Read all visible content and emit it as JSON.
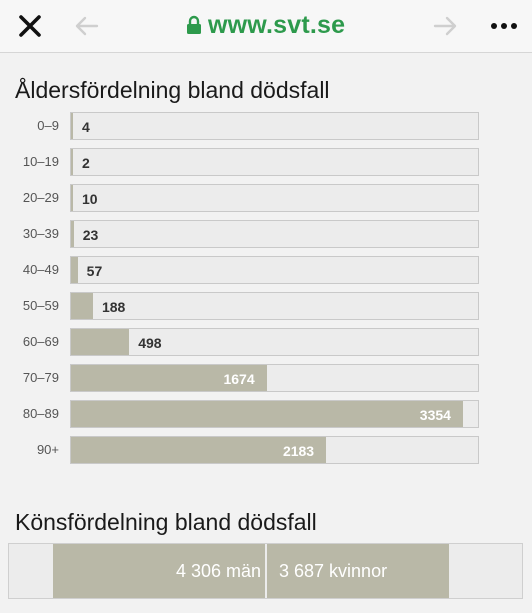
{
  "browser": {
    "url": "www.svt.se",
    "colors": {
      "url": "#2d9a4c",
      "bar_fill": "#b9b8a7"
    },
    "icons": [
      "close-icon",
      "back-arrow-icon",
      "lock-icon",
      "forward-arrow-icon",
      "more-icon"
    ]
  },
  "age_section": {
    "title": "Åldersfördelning bland dödsfall"
  },
  "chart_data": [
    {
      "type": "bar",
      "title": "Åldersfördelning bland dödsfall",
      "orientation": "horizontal",
      "categories": [
        "0–9",
        "10–19",
        "20–29",
        "30–39",
        "40–49",
        "50–59",
        "60–69",
        "70–79",
        "80–89",
        "90+"
      ],
      "values": [
        4,
        2,
        10,
        23,
        57,
        188,
        498,
        1674,
        3354,
        2183
      ],
      "value_labels": [
        "4",
        "2",
        "10",
        "23",
        "57",
        "188",
        "498",
        "1674",
        "3354",
        "2183"
      ],
      "xlim": [
        0,
        3500
      ]
    },
    {
      "type": "bar",
      "title": "Könsfördelning bland dödsfall",
      "stacked": true,
      "series": [
        {
          "name": "män",
          "value": 4306,
          "label": "4 306 män"
        },
        {
          "name": "kvinnor",
          "value": 3687,
          "label": "3 687 kvinnor"
        }
      ]
    }
  ],
  "gender_section": {
    "title": "Könsfördelning bland dödsfall",
    "men_label": "4 306 män",
    "women_label": "3 687 kvinnor"
  }
}
